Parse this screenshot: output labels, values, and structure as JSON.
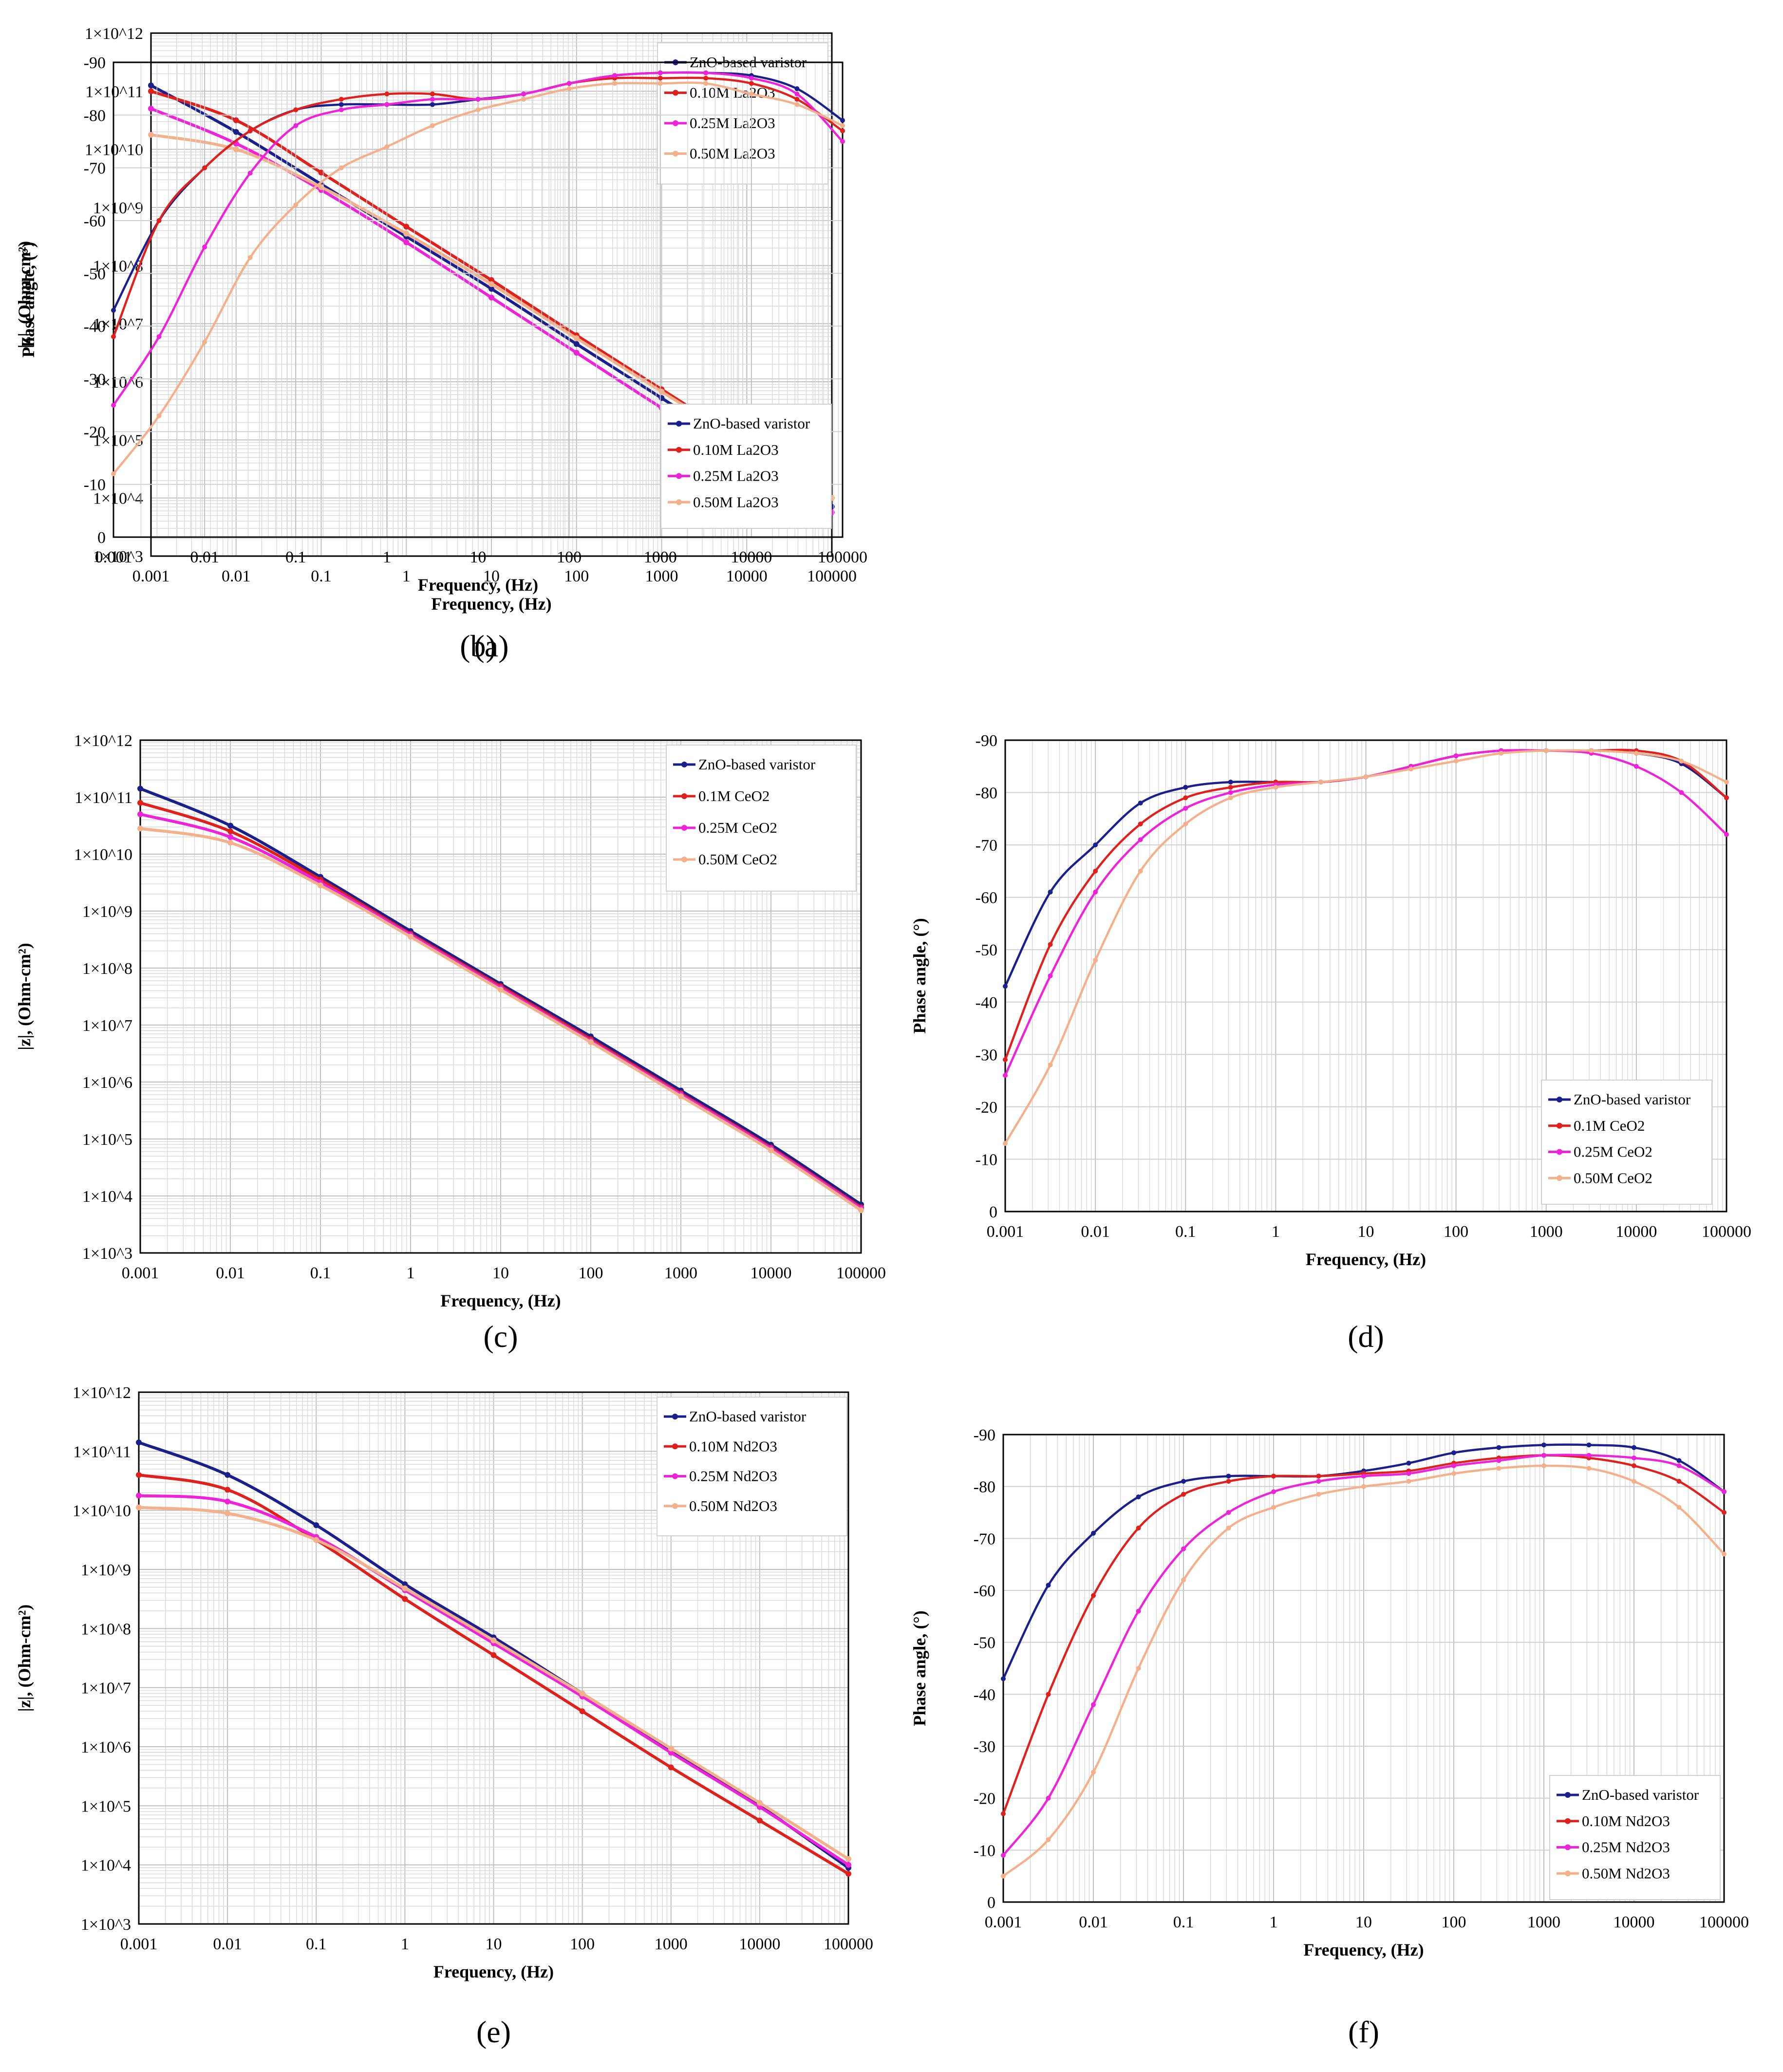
{
  "colors": {
    "zno": "#1a1f8c",
    "s010": "#e0201c",
    "s025": "#ee22d8",
    "s050": "#f3b08a",
    "grid": "#d9d9d9",
    "axis": "#000000"
  },
  "chart_data": [
    {
      "id": "a",
      "type": "line",
      "caption": "(a)",
      "xlabel": "Frequency, (Hz)",
      "ylabel": "|z|, (Ohm-cm²)",
      "xscale": "log",
      "yscale": "log",
      "xlim": [
        0.001,
        100000
      ],
      "ylim": [
        1000,
        1000000000000
      ],
      "xticks": [
        "0.001",
        "0.01",
        "0.1",
        "1",
        "10",
        "100",
        "1000",
        "10000",
        "100000"
      ],
      "yticks": [
        "1×10^3",
        "1×10^4",
        "1×10^5",
        "1×10^6",
        "1×10^7",
        "1×10^8",
        "1×10^9",
        "1×10^10",
        "1×10^11",
        "1×10^12"
      ],
      "legend_position": "top-right",
      "x_log": [
        -3,
        -2,
        -1,
        0,
        1,
        2,
        3,
        4,
        5
      ],
      "series": [
        {
          "name": "ZnO-based varistor",
          "color_key": "zno",
          "y_log": [
            11.1,
            10.3,
            9.4,
            8.5,
            7.6,
            6.65,
            5.72,
            4.78,
            3.85
          ]
        },
        {
          "name": "0.10M La2O3",
          "color_key": "s010",
          "y_log": [
            11.0,
            10.5,
            9.6,
            8.67,
            7.75,
            6.8,
            5.87,
            4.93,
            4.0
          ]
        },
        {
          "name": "0.25M La2O3",
          "color_key": "s025",
          "y_log": [
            10.7,
            10.1,
            9.3,
            8.4,
            7.45,
            6.5,
            5.55,
            4.65,
            3.75
          ]
        },
        {
          "name": "0.50M La2O3",
          "color_key": "s050",
          "y_log": [
            10.25,
            10.0,
            9.35,
            8.55,
            7.68,
            6.75,
            5.83,
            4.92,
            4.0
          ]
        }
      ]
    },
    {
      "id": "b",
      "type": "line",
      "caption": "(b)",
      "xlabel": "Frequency, (Hz)",
      "ylabel": "Phase angle, (°)",
      "xscale": "log",
      "xlim": [
        0.001,
        100000
      ],
      "ylim": [
        0,
        -90
      ],
      "xticks": [
        "0.001",
        "0.01",
        "0.1",
        "1",
        "10",
        "100",
        "1000",
        "10000",
        "100000"
      ],
      "yticks": [
        "0",
        "-10",
        "-20",
        "-30",
        "-40",
        "-50",
        "-60",
        "-70",
        "-80",
        "-90"
      ],
      "legend_position": "bottom-right",
      "x_log": [
        -3,
        -2.5,
        -2,
        -1.5,
        -1,
        -0.5,
        0,
        0.5,
        1,
        1.5,
        2,
        2.5,
        3,
        3.5,
        4,
        4.5,
        5
      ],
      "series": [
        {
          "name": "ZnO-based varistor",
          "color_key": "zno",
          "values": [
            -43,
            -60,
            -70,
            -77,
            -81,
            -82,
            -82,
            -82,
            -83,
            -84,
            -86,
            -87.5,
            -88,
            -88,
            -87.5,
            -85,
            -79
          ]
        },
        {
          "name": "0.10M La2O3",
          "color_key": "s010",
          "values": [
            -38,
            -60,
            -70,
            -77,
            -81,
            -83,
            -84,
            -84,
            -83,
            -84,
            -86,
            -87,
            -87,
            -87,
            -86,
            -83,
            -77
          ]
        },
        {
          "name": "0.25M La2O3",
          "color_key": "s025",
          "values": [
            -25,
            -38,
            -55,
            -69,
            -78,
            -81,
            -82,
            -83,
            -83,
            -84,
            -86,
            -87.5,
            -88,
            -88,
            -87,
            -84,
            -75
          ]
        },
        {
          "name": "0.50M La2O3",
          "color_key": "s050",
          "values": [
            -12,
            -23,
            -37,
            -53,
            -63,
            -70,
            -74,
            -78,
            -81,
            -83,
            -85,
            -86,
            -86,
            -86,
            -84,
            -82,
            -78
          ]
        }
      ]
    },
    {
      "id": "c",
      "type": "line",
      "caption": "(c)",
      "xlabel": "Frequency, (Hz)",
      "ylabel": "|z|, (Ohm-cm²)",
      "xscale": "log",
      "yscale": "log",
      "xlim": [
        0.001,
        100000
      ],
      "ylim": [
        1000,
        1000000000000
      ],
      "xticks": [
        "0.001",
        "0.01",
        "0.1",
        "1",
        "10",
        "100",
        "1000",
        "10000",
        "100000"
      ],
      "yticks": [
        "1×10^3",
        "1×10^4",
        "1×10^5",
        "1×10^6",
        "1×10^7",
        "1×10^8",
        "1×10^9",
        "1×10^10",
        "1×10^11",
        "1×10^12"
      ],
      "legend_position": "top-right",
      "x_log": [
        -3,
        -2,
        -1,
        0,
        1,
        2,
        3,
        4,
        5
      ],
      "series": [
        {
          "name": "ZnO-based varistor",
          "color_key": "zno",
          "y_log": [
            11.15,
            10.5,
            9.6,
            8.65,
            7.72,
            6.8,
            5.85,
            4.9,
            3.85
          ]
        },
        {
          "name": "0.1M CeO2",
          "color_key": "s010",
          "y_log": [
            10.9,
            10.4,
            9.55,
            8.6,
            7.68,
            6.75,
            5.8,
            4.85,
            3.8
          ]
        },
        {
          "name": "0.25M CeO2",
          "color_key": "s025",
          "y_log": [
            10.7,
            10.3,
            9.5,
            8.58,
            7.65,
            6.72,
            5.78,
            4.83,
            3.78
          ]
        },
        {
          "name": "0.50M CeO2",
          "color_key": "s050",
          "y_log": [
            10.45,
            10.2,
            9.45,
            8.55,
            7.62,
            6.7,
            5.75,
            4.8,
            3.75
          ]
        }
      ]
    },
    {
      "id": "d",
      "type": "line",
      "caption": "(d)",
      "xlabel": "Frequency, (Hz)",
      "ylabel": "Phase angle, (°)",
      "xscale": "log",
      "xlim": [
        0.001,
        100000
      ],
      "ylim": [
        0,
        -90
      ],
      "xticks": [
        "0.001",
        "0.01",
        "0.1",
        "1",
        "10",
        "100",
        "1000",
        "10000",
        "100000"
      ],
      "yticks": [
        "0",
        "-10",
        "-20",
        "-30",
        "-40",
        "-50",
        "-60",
        "-70",
        "-80",
        "-90"
      ],
      "legend_position": "bottom-right",
      "x_log": [
        -3,
        -2.5,
        -2,
        -1.5,
        -1,
        -0.5,
        0,
        0.5,
        1,
        1.5,
        2,
        2.5,
        3,
        3.5,
        4,
        4.5,
        5
      ],
      "series": [
        {
          "name": "ZnO-based varistor",
          "color_key": "zno",
          "values": [
            -43,
            -61,
            -70,
            -78,
            -81,
            -82,
            -82,
            -82,
            -83,
            -85,
            -87,
            -88,
            -88,
            -88,
            -87.5,
            -85.5,
            -79
          ]
        },
        {
          "name": "0.1M CeO2",
          "color_key": "s010",
          "values": [
            -29,
            -51,
            -65,
            -74,
            -79,
            -81,
            -82,
            -82,
            -83,
            -85,
            -87,
            -88,
            -88,
            -88,
            -88,
            -86,
            -79
          ]
        },
        {
          "name": "0.25M CeO2",
          "color_key": "s025",
          "values": [
            -26,
            -45,
            -61,
            -71,
            -77,
            -80,
            -81.5,
            -82,
            -83,
            -85,
            -87,
            -88,
            -88,
            -87.5,
            -85,
            -80,
            -72
          ]
        },
        {
          "name": "0.50M CeO2",
          "color_key": "s050",
          "values": [
            -13,
            -28,
            -48,
            -65,
            -74,
            -79,
            -81,
            -82,
            -83,
            -84.5,
            -86,
            -87.5,
            -88,
            -88,
            -87.5,
            -86,
            -82
          ]
        }
      ]
    },
    {
      "id": "e",
      "type": "line",
      "caption": "(e)",
      "xlabel": "Frequency, (Hz)",
      "ylabel": "|z|, (Ohm-cm²)",
      "xscale": "log",
      "yscale": "log",
      "xlim": [
        0.001,
        100000
      ],
      "ylim": [
        1000,
        1000000000000
      ],
      "xticks": [
        "0.001",
        "0.01",
        "0.1",
        "1",
        "10",
        "100",
        "1000",
        "10000",
        "100000"
      ],
      "yticks": [
        "1×10^3",
        "1×10^4",
        "1×10^5",
        "1×10^6",
        "1×10^7",
        "1×10^8",
        "1×10^9",
        "1×10^10",
        "1×10^11",
        "1×10^12"
      ],
      "legend_position": "top-right",
      "x_log": [
        -3,
        -2,
        -1,
        0,
        1,
        2,
        3,
        4,
        5
      ],
      "series": [
        {
          "name": "ZnO-based varistor",
          "color_key": "zno",
          "y_log": [
            11.15,
            10.6,
            9.75,
            8.75,
            7.85,
            6.9,
            5.95,
            5.0,
            3.95
          ]
        },
        {
          "name": "0.10M Nd2O3",
          "color_key": "s010",
          "y_log": [
            10.6,
            10.35,
            9.5,
            8.5,
            7.55,
            6.6,
            5.65,
            4.75,
            3.85
          ]
        },
        {
          "name": "0.25M Nd2O3",
          "color_key": "s025",
          "y_log": [
            10.25,
            10.15,
            9.55,
            8.65,
            7.75,
            6.85,
            5.9,
            4.98,
            4.0
          ]
        },
        {
          "name": "0.50M Nd2O3",
          "color_key": "s050",
          "y_log": [
            10.05,
            9.95,
            9.5,
            8.68,
            7.8,
            6.9,
            5.97,
            5.05,
            4.1
          ]
        }
      ]
    },
    {
      "id": "f",
      "type": "line",
      "caption": "(f)",
      "xlabel": "Frequency, (Hz)",
      "ylabel": "Phase angle, (°)",
      "xscale": "log",
      "xlim": [
        0.001,
        100000
      ],
      "ylim": [
        0,
        -90
      ],
      "xticks": [
        "0.001",
        "0.01",
        "0.1",
        "1",
        "10",
        "100",
        "1000",
        "10000",
        "100000"
      ],
      "yticks": [
        "0",
        "-10",
        "-20",
        "-30",
        "-40",
        "-50",
        "-60",
        "-70",
        "-80",
        "-90"
      ],
      "legend_position": "bottom-right",
      "x_log": [
        -3,
        -2.5,
        -2,
        -1.5,
        -1,
        -0.5,
        0,
        0.5,
        1,
        1.5,
        2,
        2.5,
        3,
        3.5,
        4,
        4.5,
        5
      ],
      "series": [
        {
          "name": "ZnO-based varistor",
          "color_key": "zno",
          "values": [
            -43,
            -61,
            -71,
            -78,
            -81,
            -82,
            -82,
            -82,
            -83,
            -84.5,
            -86.5,
            -87.5,
            -88,
            -88,
            -87.5,
            -85,
            -79
          ]
        },
        {
          "name": "0.10M Nd2O3",
          "color_key": "s010",
          "values": [
            -17,
            -40,
            -59,
            -72,
            -78.5,
            -81,
            -82,
            -82,
            -82.5,
            -83,
            -84.5,
            -85.5,
            -86,
            -85.5,
            -84,
            -81,
            -75
          ]
        },
        {
          "name": "0.25M Nd2O3",
          "color_key": "s025",
          "values": [
            -9,
            -20,
            -38,
            -56,
            -68,
            -75,
            -79,
            -81,
            -82,
            -82.5,
            -84,
            -85,
            -86,
            -86,
            -85.5,
            -84,
            -79
          ]
        },
        {
          "name": "0.50M Nd2O3",
          "color_key": "s050",
          "values": [
            -5,
            -12,
            -25,
            -45,
            -62,
            -72,
            -76,
            -78.5,
            -80,
            -81,
            -82.5,
            -83.5,
            -84,
            -83.5,
            -81,
            -76,
            -67
          ]
        }
      ]
    }
  ]
}
